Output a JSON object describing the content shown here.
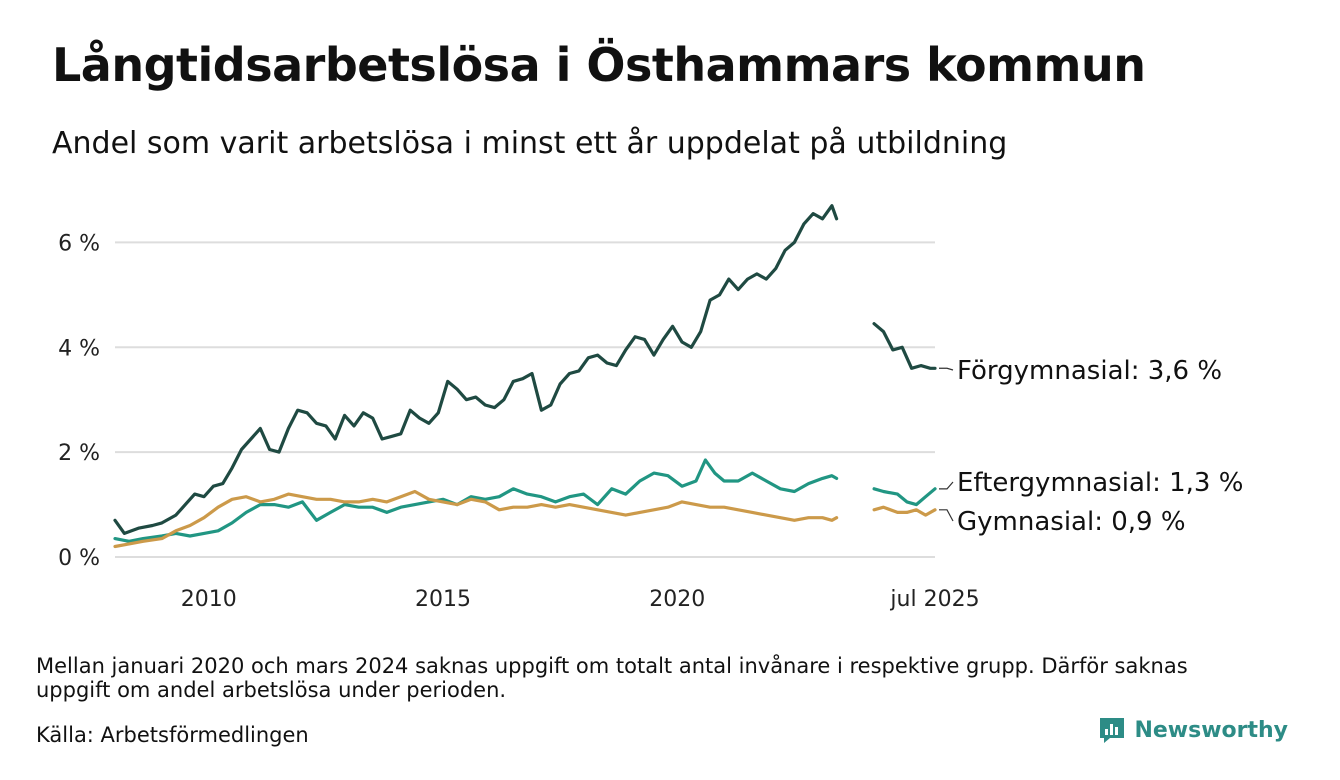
{
  "header": {
    "title": "Långtidsarbetslösa i Östhammars kommun",
    "subtitle": "Andel som varit arbetslösa i minst ett år uppdelat på utbildning"
  },
  "footer": {
    "note": "Mellan januari 2020 och mars 2024 saknas uppgift om totalt antal invånare i respektive grupp. Därför saknas uppgift om andel arbetslösa under perioden.",
    "source": "Källa: Arbetsförmedlingen",
    "brand": "Newsworthy"
  },
  "chart_data": {
    "type": "line",
    "title": "Långtidsarbetslösa i Östhammars kommun",
    "subtitle": "Andel som varit arbetslösa i minst ett år uppdelat på utbildning",
    "x_range": [
      2008.0,
      2025.5
    ],
    "ylim": [
      0,
      7
    ],
    "y_ticks": [
      0,
      2,
      4,
      6
    ],
    "y_tick_labels": [
      "0 %",
      "2 %",
      "4 %",
      "6 %"
    ],
    "x_ticks": [
      2010,
      2015,
      2020,
      2025.5
    ],
    "x_tick_labels": [
      "2010",
      "2015",
      "2020",
      "jul 2025"
    ],
    "grid": true,
    "legend": "end labels",
    "series": [
      {
        "name": "Förgymnasial",
        "end_label": "Förgymnasial: 3,6 %",
        "color": "#1f4a42",
        "segments": [
          [
            [
              2008.0,
              0.7
            ],
            [
              2008.2,
              0.45
            ],
            [
              2008.5,
              0.55
            ],
            [
              2008.8,
              0.6
            ],
            [
              2009.0,
              0.65
            ],
            [
              2009.3,
              0.8
            ],
            [
              2009.5,
              1.0
            ],
            [
              2009.7,
              1.2
            ],
            [
              2009.9,
              1.15
            ],
            [
              2010.1,
              1.35
            ],
            [
              2010.3,
              1.4
            ],
            [
              2010.5,
              1.7
            ],
            [
              2010.7,
              2.05
            ],
            [
              2010.9,
              2.25
            ],
            [
              2011.1,
              2.45
            ],
            [
              2011.3,
              2.05
            ],
            [
              2011.5,
              2.0
            ],
            [
              2011.7,
              2.45
            ],
            [
              2011.9,
              2.8
            ],
            [
              2012.1,
              2.75
            ],
            [
              2012.3,
              2.55
            ],
            [
              2012.5,
              2.5
            ],
            [
              2012.7,
              2.25
            ],
            [
              2012.9,
              2.7
            ],
            [
              2013.1,
              2.5
            ],
            [
              2013.3,
              2.75
            ],
            [
              2013.5,
              2.65
            ],
            [
              2013.7,
              2.25
            ],
            [
              2013.9,
              2.3
            ],
            [
              2014.1,
              2.35
            ],
            [
              2014.3,
              2.8
            ],
            [
              2014.5,
              2.65
            ],
            [
              2014.7,
              2.55
            ],
            [
              2014.9,
              2.75
            ],
            [
              2015.1,
              3.35
            ],
            [
              2015.3,
              3.2
            ],
            [
              2015.5,
              3.0
            ],
            [
              2015.7,
              3.05
            ],
            [
              2015.9,
              2.9
            ],
            [
              2016.1,
              2.85
            ],
            [
              2016.3,
              3.0
            ],
            [
              2016.5,
              3.35
            ],
            [
              2016.7,
              3.4
            ],
            [
              2016.9,
              3.5
            ],
            [
              2017.1,
              2.8
            ],
            [
              2017.3,
              2.9
            ],
            [
              2017.5,
              3.3
            ],
            [
              2017.7,
              3.5
            ],
            [
              2017.9,
              3.55
            ],
            [
              2018.1,
              3.8
            ],
            [
              2018.3,
              3.85
            ],
            [
              2018.5,
              3.7
            ],
            [
              2018.7,
              3.65
            ],
            [
              2018.9,
              3.95
            ],
            [
              2019.1,
              4.2
            ],
            [
              2019.3,
              4.15
            ],
            [
              2019.5,
              3.85
            ],
            [
              2019.7,
              4.15
            ],
            [
              2019.9,
              4.4
            ],
            [
              2020.1,
              4.1
            ],
            [
              2020.3,
              4.0
            ],
            [
              2020.5,
              4.3
            ],
            [
              2020.7,
              4.9
            ],
            [
              2020.9,
              5.0
            ],
            [
              2021.1,
              5.3
            ],
            [
              2021.3,
              5.1
            ],
            [
              2021.5,
              5.3
            ],
            [
              2021.7,
              5.4
            ],
            [
              2021.9,
              5.3
            ],
            [
              2022.1,
              5.5
            ],
            [
              2022.3,
              5.85
            ],
            [
              2022.5,
              6.0
            ],
            [
              2022.7,
              6.35
            ],
            [
              2022.9,
              6.55
            ],
            [
              2023.1,
              6.45
            ],
            [
              2023.3,
              6.7
            ],
            [
              2023.4,
              6.45
            ]
          ],
          [
            [
              2024.2,
              4.45
            ],
            [
              2024.4,
              4.3
            ],
            [
              2024.6,
              3.95
            ],
            [
              2024.8,
              4.0
            ],
            [
              2025.0,
              3.6
            ],
            [
              2025.2,
              3.65
            ],
            [
              2025.4,
              3.6
            ],
            [
              2025.5,
              3.6
            ]
          ]
        ]
      },
      {
        "name": "Eftergymnasial",
        "end_label": "Eftergymnasial: 1,3 %",
        "color": "#219683",
        "segments": [
          [
            [
              2008.0,
              0.35
            ],
            [
              2008.3,
              0.3
            ],
            [
              2008.6,
              0.35
            ],
            [
              2009.0,
              0.4
            ],
            [
              2009.3,
              0.45
            ],
            [
              2009.6,
              0.4
            ],
            [
              2009.9,
              0.45
            ],
            [
              2010.2,
              0.5
            ],
            [
              2010.5,
              0.65
            ],
            [
              2010.8,
              0.85
            ],
            [
              2011.1,
              1.0
            ],
            [
              2011.4,
              1.0
            ],
            [
              2011.7,
              0.95
            ],
            [
              2012.0,
              1.05
            ],
            [
              2012.3,
              0.7
            ],
            [
              2012.6,
              0.85
            ],
            [
              2012.9,
              1.0
            ],
            [
              2013.2,
              0.95
            ],
            [
              2013.5,
              0.95
            ],
            [
              2013.8,
              0.85
            ],
            [
              2014.1,
              0.95
            ],
            [
              2014.4,
              1.0
            ],
            [
              2014.7,
              1.05
            ],
            [
              2015.0,
              1.1
            ],
            [
              2015.3,
              1.0
            ],
            [
              2015.6,
              1.15
            ],
            [
              2015.9,
              1.1
            ],
            [
              2016.2,
              1.15
            ],
            [
              2016.5,
              1.3
            ],
            [
              2016.8,
              1.2
            ],
            [
              2017.1,
              1.15
            ],
            [
              2017.4,
              1.05
            ],
            [
              2017.7,
              1.15
            ],
            [
              2018.0,
              1.2
            ],
            [
              2018.3,
              1.0
            ],
            [
              2018.6,
              1.3
            ],
            [
              2018.9,
              1.2
            ],
            [
              2019.2,
              1.45
            ],
            [
              2019.5,
              1.6
            ],
            [
              2019.8,
              1.55
            ],
            [
              2020.1,
              1.35
            ],
            [
              2020.4,
              1.45
            ],
            [
              2020.6,
              1.85
            ],
            [
              2020.8,
              1.6
            ],
            [
              2021.0,
              1.45
            ],
            [
              2021.3,
              1.45
            ],
            [
              2021.6,
              1.6
            ],
            [
              2021.9,
              1.45
            ],
            [
              2022.2,
              1.3
            ],
            [
              2022.5,
              1.25
            ],
            [
              2022.8,
              1.4
            ],
            [
              2023.1,
              1.5
            ],
            [
              2023.3,
              1.55
            ],
            [
              2023.4,
              1.5
            ]
          ],
          [
            [
              2024.2,
              1.3
            ],
            [
              2024.4,
              1.25
            ],
            [
              2024.7,
              1.2
            ],
            [
              2024.9,
              1.05
            ],
            [
              2025.1,
              1.0
            ],
            [
              2025.3,
              1.15
            ],
            [
              2025.5,
              1.3
            ]
          ]
        ]
      },
      {
        "name": "Gymnasial",
        "end_label": "Gymnasial: 0,9 %",
        "color": "#cc9a4a",
        "segments": [
          [
            [
              2008.0,
              0.2
            ],
            [
              2008.3,
              0.25
            ],
            [
              2008.6,
              0.3
            ],
            [
              2009.0,
              0.35
            ],
            [
              2009.3,
              0.5
            ],
            [
              2009.6,
              0.6
            ],
            [
              2009.9,
              0.75
            ],
            [
              2010.2,
              0.95
            ],
            [
              2010.5,
              1.1
            ],
            [
              2010.8,
              1.15
            ],
            [
              2011.1,
              1.05
            ],
            [
              2011.4,
              1.1
            ],
            [
              2011.7,
              1.2
            ],
            [
              2012.0,
              1.15
            ],
            [
              2012.3,
              1.1
            ],
            [
              2012.6,
              1.1
            ],
            [
              2012.9,
              1.05
            ],
            [
              2013.2,
              1.05
            ],
            [
              2013.5,
              1.1
            ],
            [
              2013.8,
              1.05
            ],
            [
              2014.1,
              1.15
            ],
            [
              2014.4,
              1.25
            ],
            [
              2014.7,
              1.1
            ],
            [
              2015.0,
              1.05
            ],
            [
              2015.3,
              1.0
            ],
            [
              2015.6,
              1.1
            ],
            [
              2015.9,
              1.05
            ],
            [
              2016.2,
              0.9
            ],
            [
              2016.5,
              0.95
            ],
            [
              2016.8,
              0.95
            ],
            [
              2017.1,
              1.0
            ],
            [
              2017.4,
              0.95
            ],
            [
              2017.7,
              1.0
            ],
            [
              2018.0,
              0.95
            ],
            [
              2018.3,
              0.9
            ],
            [
              2018.6,
              0.85
            ],
            [
              2018.9,
              0.8
            ],
            [
              2019.2,
              0.85
            ],
            [
              2019.5,
              0.9
            ],
            [
              2019.8,
              0.95
            ],
            [
              2020.1,
              1.05
            ],
            [
              2020.4,
              1.0
            ],
            [
              2020.7,
              0.95
            ],
            [
              2021.0,
              0.95
            ],
            [
              2021.3,
              0.9
            ],
            [
              2021.6,
              0.85
            ],
            [
              2021.9,
              0.8
            ],
            [
              2022.2,
              0.75
            ],
            [
              2022.5,
              0.7
            ],
            [
              2022.8,
              0.75
            ],
            [
              2023.1,
              0.75
            ],
            [
              2023.3,
              0.7
            ],
            [
              2023.4,
              0.75
            ]
          ],
          [
            [
              2024.2,
              0.9
            ],
            [
              2024.4,
              0.95
            ],
            [
              2024.7,
              0.85
            ],
            [
              2024.9,
              0.85
            ],
            [
              2025.1,
              0.9
            ],
            [
              2025.3,
              0.8
            ],
            [
              2025.5,
              0.9
            ]
          ]
        ]
      }
    ]
  }
}
